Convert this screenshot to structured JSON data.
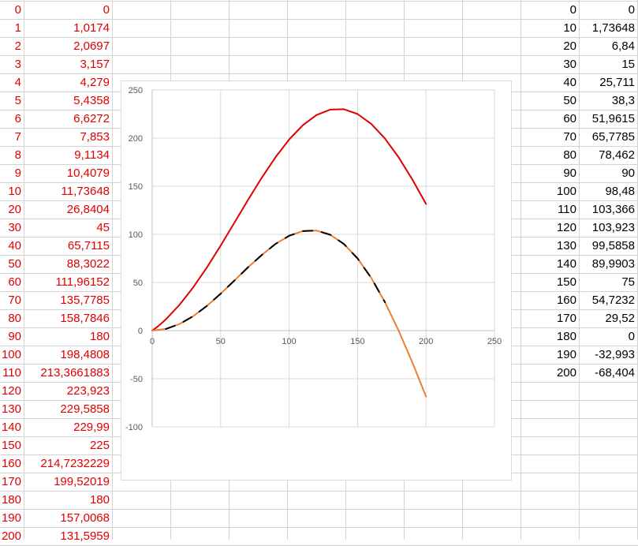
{
  "sheet": {
    "left_table": [
      {
        "x": "0",
        "y": "0"
      },
      {
        "x": "1",
        "y": "1,0174"
      },
      {
        "x": "2",
        "y": "2,0697"
      },
      {
        "x": "3",
        "y": "3,157"
      },
      {
        "x": "4",
        "y": "4,279"
      },
      {
        "x": "5",
        "y": "5,4358"
      },
      {
        "x": "6",
        "y": "6,6272"
      },
      {
        "x": "7",
        "y": "7,853"
      },
      {
        "x": "8",
        "y": "9,1134"
      },
      {
        "x": "9",
        "y": "10,4079"
      },
      {
        "x": "10",
        "y": "11,73648"
      },
      {
        "x": "20",
        "y": "26,8404"
      },
      {
        "x": "30",
        "y": "45"
      },
      {
        "x": "40",
        "y": "65,7115"
      },
      {
        "x": "50",
        "y": "88,3022"
      },
      {
        "x": "60",
        "y": "111,96152"
      },
      {
        "x": "70",
        "y": "135,7785"
      },
      {
        "x": "80",
        "y": "158,7846"
      },
      {
        "x": "90",
        "y": "180"
      },
      {
        "x": "100",
        "y": "198,4808"
      },
      {
        "x": "110",
        "y": "213,3661883"
      },
      {
        "x": "120",
        "y": "223,923"
      },
      {
        "x": "130",
        "y": "229,5858"
      },
      {
        "x": "140",
        "y": "229,99"
      },
      {
        "x": "150",
        "y": "225"
      },
      {
        "x": "160",
        "y": "214,7232229"
      },
      {
        "x": "170",
        "y": "199,52019"
      },
      {
        "x": "180",
        "y": "180"
      },
      {
        "x": "190",
        "y": "157,0068"
      },
      {
        "x": "200",
        "y": "131,5959"
      }
    ],
    "right_table": [
      {
        "x": "0",
        "y": "0"
      },
      {
        "x": "10",
        "y": "1,73648"
      },
      {
        "x": "20",
        "y": "6,84"
      },
      {
        "x": "30",
        "y": "15"
      },
      {
        "x": "40",
        "y": "25,711"
      },
      {
        "x": "50",
        "y": "38,3"
      },
      {
        "x": "60",
        "y": "51,9615"
      },
      {
        "x": "70",
        "y": "65,7785"
      },
      {
        "x": "80",
        "y": "78,462"
      },
      {
        "x": "90",
        "y": "90"
      },
      {
        "x": "100",
        "y": "98,48"
      },
      {
        "x": "110",
        "y": "103,366"
      },
      {
        "x": "120",
        "y": "103,923"
      },
      {
        "x": "130",
        "y": "99,5858"
      },
      {
        "x": "140",
        "y": "89,9903"
      },
      {
        "x": "150",
        "y": "75"
      },
      {
        "x": "160",
        "y": "54,7232"
      },
      {
        "x": "170",
        "y": "29,52"
      },
      {
        "x": "180",
        "y": "0"
      },
      {
        "x": "190",
        "y": "-32,993"
      },
      {
        "x": "200",
        "y": "-68,404"
      }
    ]
  },
  "colors": {
    "red_series": "#e00000",
    "orange_series": "#ed7d31",
    "black_series": "#000000",
    "left_table_text": "#e00000",
    "right_table_text": "#000000"
  },
  "chart_data": {
    "type": "scatter",
    "title": "",
    "xlabel": "",
    "ylabel": "",
    "xlim": [
      0,
      250
    ],
    "ylim": [
      -100,
      250
    ],
    "x_ticks": [
      "0",
      "50",
      "100",
      "150",
      "200",
      "250"
    ],
    "y_ticks": [
      "250",
      "200",
      "150",
      "100",
      "50",
      "0",
      "-50",
      "-100"
    ],
    "grid": true,
    "legend": "none",
    "series": [
      {
        "color": "#e00000",
        "x": [
          0,
          1,
          2,
          3,
          4,
          5,
          6,
          7,
          8,
          9,
          10,
          20,
          30,
          40,
          50,
          60,
          70,
          80,
          90,
          100,
          110,
          120,
          130,
          140,
          150,
          160,
          170,
          180,
          190,
          200
        ],
        "y": [
          0,
          1.0174,
          2.0697,
          3.157,
          4.279,
          5.4358,
          6.6272,
          7.853,
          9.1134,
          10.4079,
          11.73648,
          26.8404,
          45,
          65.7115,
          88.3022,
          111.96152,
          135.7785,
          158.7846,
          180,
          198.4808,
          213.3661883,
          223.923,
          229.5858,
          229.99,
          225,
          214.7232229,
          199.52019,
          180,
          157.0068,
          131.5959
        ]
      },
      {
        "color": "#ed7d31",
        "x": [
          0,
          10,
          20,
          30,
          40,
          50,
          60,
          70,
          80,
          90,
          100,
          110,
          120,
          130,
          140,
          150,
          160,
          170,
          180,
          190,
          200
        ],
        "y": [
          0,
          1.73648,
          6.84,
          15,
          25.711,
          38.3,
          51.9615,
          65.7785,
          78.462,
          90,
          98.48,
          103.366,
          103.923,
          99.5858,
          89.9903,
          75,
          54.7232,
          29.52,
          0,
          -32.993,
          -68.404
        ]
      },
      {
        "color": "#000000",
        "style": "dashed",
        "x": [
          10,
          20,
          30,
          40,
          50,
          60,
          70,
          80,
          90,
          100,
          110,
          120,
          130,
          140,
          150,
          160,
          170
        ],
        "y": [
          1.73648,
          6.84,
          15,
          25.711,
          38.3,
          51.9615,
          65.7785,
          78.462,
          90,
          98.48,
          103.366,
          103.923,
          99.5858,
          89.9903,
          75,
          54.7232,
          29.52
        ]
      }
    ]
  }
}
